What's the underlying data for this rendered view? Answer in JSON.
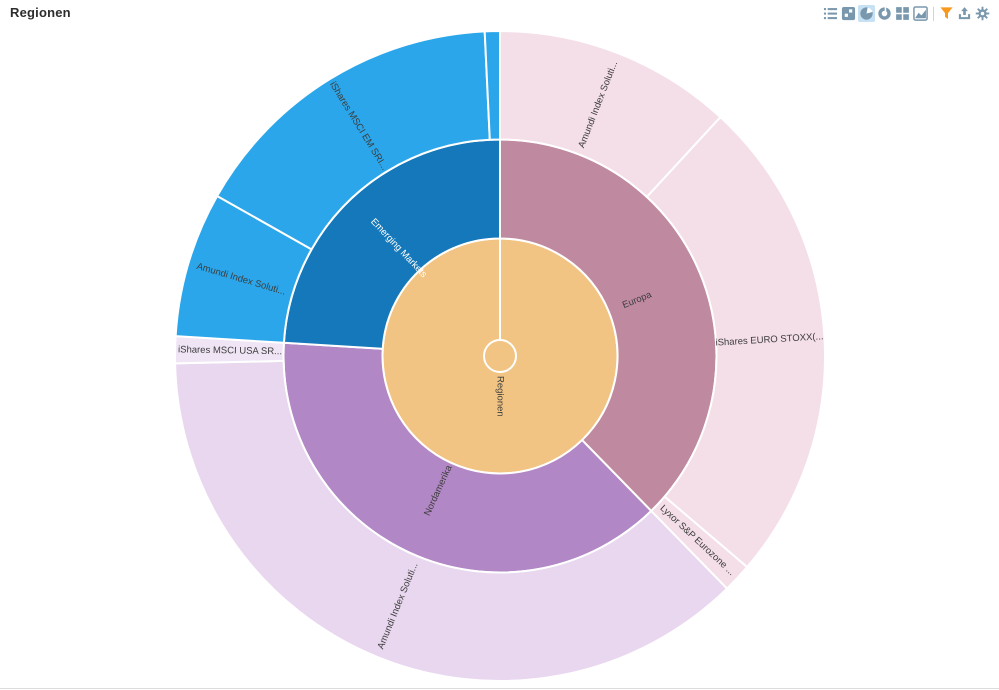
{
  "header": {
    "title": "Regionen"
  },
  "toolbar": {
    "icon_color": "#7a98ad",
    "selected_bg": "#c6e0f4",
    "filter_color": "#f7991d",
    "icons": [
      {
        "name": "list",
        "selected": false
      },
      {
        "name": "treemap",
        "selected": false
      },
      {
        "name": "pie-chart",
        "selected": true
      },
      {
        "name": "donut-chart",
        "selected": false
      },
      {
        "name": "grid",
        "selected": false
      },
      {
        "name": "area-chart",
        "selected": false
      },
      {
        "name": "filter",
        "selected": false
      },
      {
        "name": "upload",
        "selected": false
      },
      {
        "name": "settings",
        "selected": false
      }
    ]
  },
  "chart_data": {
    "type": "sunburst",
    "title": "Regionen",
    "angle_unit": "degrees clockwise from 12 o'clock",
    "root": {
      "label": "Regionen",
      "color": "#f2c483",
      "text_color": "#3d3d3d"
    },
    "rings": [
      {
        "level": 1,
        "segments": [
          {
            "label": "Europa",
            "color": "#bf8aa0",
            "text_color": "#3d3d3d",
            "start_deg": 0,
            "end_deg": 135.7,
            "share_pct": 37.7
          },
          {
            "label": "Nordamerika",
            "color": "#b287c5",
            "text_color": "#3d3d3d",
            "start_deg": 135.7,
            "end_deg": 273.5,
            "share_pct": 38.3
          },
          {
            "label": "Emerging Markets",
            "color": "#1478ba",
            "text_color": "#ffffff",
            "start_deg": 273.5,
            "end_deg": 360,
            "share_pct": 24.0
          }
        ]
      },
      {
        "level": 2,
        "segments": [
          {
            "label": "Amundi Index Soluti...",
            "parent": "Europa",
            "color": "#f4dee7",
            "text_color": "#3d3d3d",
            "start_deg": 0,
            "end_deg": 42.7,
            "share_pct": 11.9
          },
          {
            "label": "iShares EURO STOXX(...",
            "parent": "Europa",
            "color": "#f4dee7",
            "text_color": "#3d3d3d",
            "start_deg": 42.7,
            "end_deg": 130.5,
            "share_pct": 24.4
          },
          {
            "label": "Lyxor S&P Eurozone ...",
            "parent": "Europa",
            "color": "#f4dee7",
            "text_color": "#3d3d3d",
            "start_deg": 130.5,
            "end_deg": 135.7,
            "share_pct": 1.4
          },
          {
            "label": "Amundi Index Soluti...",
            "parent": "Nordamerika",
            "color": "#e8d7ef",
            "text_color": "#3d3d3d",
            "start_deg": 135.7,
            "end_deg": 268.7,
            "share_pct": 36.9
          },
          {
            "label": "iShares MSCI USA SR...",
            "parent": "Nordamerika",
            "color": "#efe5f5",
            "text_color": "#3d3d3d",
            "start_deg": 268.7,
            "end_deg": 273.5,
            "share_pct": 1.3
          },
          {
            "label": "Amundi Index Soluti...",
            "parent": "Emerging Markets",
            "color": "#2ba6ea",
            "text_color": "#3d3d3d",
            "start_deg": 273.5,
            "end_deg": 299.5,
            "share_pct": 7.2
          },
          {
            "label": "iShares MSCI EM SRI...",
            "parent": "Emerging Markets",
            "color": "#2ba6ea",
            "text_color": "#3d3d3d",
            "start_deg": 299.5,
            "end_deg": 357.3,
            "share_pct": 16.1
          },
          {
            "label": "",
            "parent": "Emerging Markets",
            "color": "#2ba6ea",
            "text_color": "#3d3d3d",
            "start_deg": 357.3,
            "end_deg": 360,
            "share_pct": 0.7
          }
        ]
      }
    ]
  }
}
